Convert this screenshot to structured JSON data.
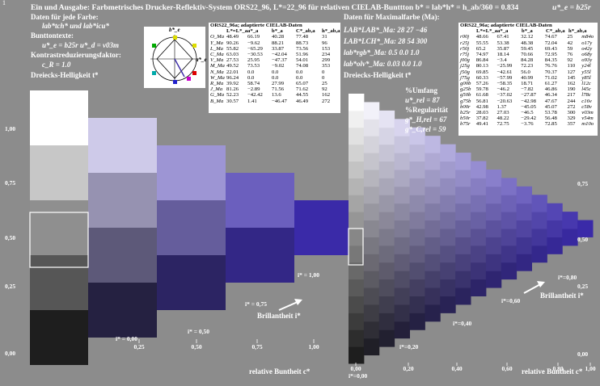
{
  "header": {
    "title": "Ein und Ausgabe: Farbmetrisches Drucker-Reflektiv-System ORS22_96, L*=22_96 für relativen CIELAB-Bunttton b* = lab*h* = h_ab/360 = 0.834",
    "title_right": "u*_e = b25r",
    "corner_mark": "1"
  },
  "left_panel": {
    "line1": "Daten für jede Farbe:",
    "line2": "lab*tch* und lab*icu*",
    "line3": "Bunttontexte:",
    "line4": "u*_e = b25r   u*_d = v03m",
    "line5": "Kontrastreduzierungsfaktor:",
    "line6": "c_R = 1.0",
    "line7": "Dreiecks-Helligkeit t*"
  },
  "hue_circle": {
    "top_label": "b*_e",
    "right_label": "a*_e"
  },
  "table1": {
    "title": "ORS22_96a; adaptierte CIELAB-Daten",
    "columns": [
      "",
      "L*=L*_a",
      "a*_a",
      "b*_a",
      "C*_ab,a",
      "h*_ab,a"
    ],
    "rows": [
      [
        "O_Ma",
        "48.49",
        "66.19",
        "40.28",
        "77.48",
        "31"
      ],
      [
        "Y_Ma",
        "90.26",
        "−9.62",
        "88.21",
        "88.73",
        "96"
      ],
      [
        "L_Ma",
        "55.82",
        "−65.29",
        "33.87",
        "73.56",
        "153"
      ],
      [
        "C_Ma",
        "63.03",
        "−30.53",
        "−42.04",
        "51.96",
        "234"
      ],
      [
        "V_Ma",
        "27.53",
        "25.95",
        "−47.37",
        "54.01",
        "299"
      ],
      [
        "M_Ma",
        "49.52",
        "73.53",
        "−9.02",
        "74.08",
        "353"
      ],
      [
        "N_Ma",
        "22.01",
        "0.0",
        "0.0",
        "0.0",
        "0"
      ],
      [
        "W_Ma",
        "96.24",
        "0.0",
        "0.0",
        "0.0",
        "0"
      ],
      [
        "R_Ma",
        "39.92",
        "58.74",
        "27.99",
        "65.07",
        "25"
      ],
      [
        "J_Ma",
        "81.26",
        "−2.89",
        "71.56",
        "71.62",
        "92"
      ],
      [
        "G_Ma",
        "52.23",
        "−42.42",
        "13.6",
        "44.55",
        "162"
      ],
      [
        "B_Ma",
        "30.57",
        "1.41",
        "−46.47",
        "46.49",
        "272"
      ]
    ]
  },
  "mid_panel": {
    "line1": "Daten für Maximalfarbe (Ma):",
    "lab_lab": "LAB*LAB*_Ma: 28  27  −46",
    "lab_lch": "LAB*LCH*_Ma: 28  54  300",
    "lab_rgb": "lab*rgb*_Ma: 0.5  0.0  1.0",
    "lab_olv": "lab*olv*_Ma: 0.03  0.0  1.0",
    "helligkeit": "Dreiecks-Helligkeit t*",
    "umfang": "%Umfang",
    "u_rel": "u*_rel = 87",
    "regularitaet": "%Regularität",
    "g_tri": "g*_H,rel = 67",
    "g_cd": "g*_C,rel = 59"
  },
  "table2": {
    "title": "ORS22_96a; adaptierte CIELAB-Daten",
    "columns": [
      "",
      "L*=L*_a",
      "a*_a",
      "b*_a",
      "C*_ab,a",
      "h*_ab,a"
    ],
    "rows": [
      [
        "r00j",
        "48.66",
        "67.41",
        "32.12",
        "74.67",
        "25",
        "m84o"
      ],
      [
        "r25j",
        "55.55",
        "53.38",
        "48.38",
        "72.04",
        "42",
        "o17y"
      ],
      [
        "r50j",
        "65.2",
        "35.87",
        "59.45",
        "69.43",
        "59",
        "o42y"
      ],
      [
        "r75j",
        "74.97",
        "18.14",
        "70.66",
        "72.95",
        "76",
        "o68y"
      ],
      [
        "j00g",
        "86.84",
        "−3.4",
        "84.28",
        "84.35",
        "92",
        "o93y"
      ],
      [
        "j25g",
        "80.13",
        "−25.99",
        "72.23",
        "76.76",
        "110",
        "y24l"
      ],
      [
        "j50g",
        "69.85",
        "−42.61",
        "56.0",
        "70.37",
        "127",
        "y55l"
      ],
      [
        "j75g",
        "60.33",
        "−57.99",
        "40.99",
        "71.02",
        "145",
        "y85l"
      ],
      [
        "g00b",
        "57.26",
        "−58.35",
        "18.71",
        "61.27",
        "162",
        "l12c"
      ],
      [
        "g25b",
        "59.78",
        "−46.2",
        "−7.82",
        "46.86",
        "190",
        "l45c"
      ],
      [
        "g50b",
        "61.68",
        "−37.02",
        "−27.87",
        "46.34",
        "217",
        "l78c"
      ],
      [
        "g75b",
        "56.81",
        "−20.63",
        "−42.98",
        "47.67",
        "244",
        "c16v"
      ],
      [
        "b00r",
        "42.98",
        "1.37",
        "−45.05",
        "45.07",
        "272",
        "c58v"
      ],
      [
        "b25r",
        "28.03",
        "27.03",
        "−46.5",
        "53.78",
        "300",
        "v03m"
      ],
      [
        "b50r",
        "37.82",
        "48.22",
        "−29.42",
        "56.48",
        "329",
        "v54m"
      ],
      [
        "b75r",
        "49.41",
        "72.75",
        "−3.76",
        "72.85",
        "357",
        "m10o"
      ]
    ]
  },
  "chart_data": [
    {
      "type": "heatmap",
      "xlabel": "relative Buntheit c*",
      "ylabel": "Dreiecks-Helligkeit t*",
      "x_ticks": [
        "0,25",
        "0,50",
        "0,75",
        "1,00"
      ],
      "y_ticks": [
        "0,00",
        "0,25",
        "0,50",
        "0,75",
        "1,00"
      ],
      "steps": 5,
      "annotations": [
        "i* = 0,00",
        "i* = 0,25",
        "i* = 0,50",
        "i* = 0,75",
        "i* = 1,00"
      ],
      "arrow_label": "Brillantheit i*",
      "max_color": "#3a2aa8",
      "white": "#ffffff",
      "black": "#1e1e1e"
    },
    {
      "type": "heatmap",
      "xlabel": "relative Buntheit c*",
      "ylabel": "Dreiecks-Helligkeit t*",
      "x_ticks": [
        "0,00",
        "0,20",
        "0,40",
        "0,60",
        "0,80",
        "1,00"
      ],
      "y_ticks": [
        "0,00",
        "0,25",
        "0,50",
        "0,75",
        "1,00"
      ],
      "steps": 16,
      "annotations": [
        "i*=0,00",
        "i*=0,20",
        "i*=0,40",
        "i*=0,60",
        "i*=0,80"
      ],
      "arrow_label": "Brillantheit i*",
      "max_color": "#3a2aa8",
      "white": "#ffffff",
      "black": "#1e1e1e"
    }
  ]
}
